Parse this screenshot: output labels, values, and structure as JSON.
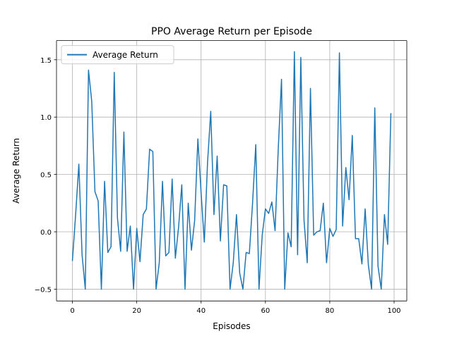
{
  "chart_data": {
    "type": "line",
    "title": "PPO Average Return per Episode",
    "xlabel": "Episodes",
    "ylabel": "Average Return",
    "xlim": [
      -4.95,
      103.95
    ],
    "ylim": [
      -0.603,
      1.667
    ],
    "xticks": [
      0,
      20,
      40,
      60,
      80,
      100
    ],
    "yticks": [
      -0.5,
      0.0,
      0.5,
      1.0,
      1.5
    ],
    "xtick_labels": [
      "0",
      "20",
      "40",
      "60",
      "80",
      "100"
    ],
    "ytick_labels": [
      "−0.5",
      "0.0",
      "0.5",
      "1.0",
      "1.5"
    ],
    "grid": true,
    "legend_position": "top-left",
    "series": [
      {
        "name": "Average Return",
        "color": "#1f77b4",
        "x": [
          0,
          1,
          2,
          3,
          4,
          5,
          6,
          7,
          8,
          9,
          10,
          11,
          12,
          13,
          14,
          15,
          16,
          17,
          18,
          19,
          20,
          21,
          22,
          23,
          24,
          25,
          26,
          27,
          28,
          29,
          30,
          31,
          32,
          33,
          34,
          35,
          36,
          37,
          38,
          39,
          40,
          41,
          42,
          43,
          44,
          45,
          46,
          47,
          48,
          49,
          50,
          51,
          52,
          53,
          54,
          55,
          56,
          57,
          58,
          59,
          60,
          61,
          62,
          63,
          64,
          65,
          66,
          67,
          68,
          69,
          70,
          71,
          72,
          73,
          74,
          75,
          76,
          77,
          78,
          79,
          80,
          81,
          82,
          83,
          84,
          85,
          86,
          87,
          88,
          89,
          90,
          91,
          92,
          93,
          94,
          95,
          96,
          97,
          98,
          99
        ],
        "values": [
          -0.25,
          0.15,
          0.59,
          -0.2,
          -0.5,
          1.41,
          1.14,
          0.35,
          0.27,
          -0.5,
          0.44,
          -0.18,
          -0.13,
          1.39,
          0.12,
          -0.17,
          0.87,
          -0.17,
          0.05,
          -0.5,
          0.03,
          -0.26,
          0.15,
          0.2,
          0.72,
          0.7,
          -0.5,
          -0.27,
          0.44,
          -0.21,
          -0.18,
          0.46,
          -0.23,
          0.04,
          0.41,
          -0.5,
          0.25,
          -0.16,
          0.1,
          0.81,
          0.34,
          -0.09,
          0.6,
          1.05,
          0.15,
          0.66,
          -0.08,
          0.41,
          0.4,
          -0.5,
          -0.27,
          0.15,
          -0.36,
          -0.5,
          -0.18,
          -0.19,
          0.25,
          0.76,
          -0.5,
          -0.03,
          0.2,
          0.16,
          0.26,
          0.01,
          0.73,
          1.33,
          -0.5,
          -0.01,
          -0.13,
          1.57,
          -0.2,
          1.52,
          0.1,
          -0.27,
          1.25,
          -0.03,
          0.0,
          0.01,
          0.25,
          -0.27,
          0.03,
          -0.04,
          0.02,
          1.56,
          0.05,
          0.56,
          0.28,
          0.84,
          -0.06,
          -0.06,
          -0.28,
          0.2,
          -0.29,
          -0.5,
          1.08,
          -0.3,
          -0.5,
          0.15,
          -0.11,
          1.03
        ]
      }
    ]
  }
}
